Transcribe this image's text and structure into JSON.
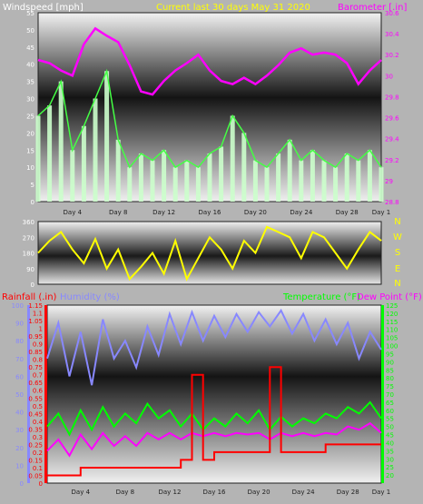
{
  "header": {
    "left_title": "Windspeed [mph]",
    "center_title": "Current last 30 days May 31 2020",
    "right_title": "Barometer [.in]"
  },
  "mid_header": {
    "rain_label": "Rainfall (.in)",
    "humidity_label": "Humidity (%)",
    "temp_label": "Temperature (°F)",
    "dew_label": "Dew Point (°F)"
  },
  "compass": [
    "N",
    "W",
    "S",
    "E",
    "N"
  ],
  "colors": {
    "wind_gust": "#ffffff",
    "wind_avg": "#44ff44",
    "wind_fill": "#ccffcc",
    "barometer": "#ff00ff",
    "direction": "#ffff00",
    "humidity": "#8888ff",
    "temperature": "#00ff00",
    "dewpoint": "#ff00ff",
    "rain": "#ff0000",
    "title_yellow": "#ffff00",
    "label_blue": "#8888ff",
    "label_red": "#ff0000",
    "label_green": "#00ff00",
    "label_magenta": "#ff00ff"
  },
  "chart_data": [
    {
      "type": "line",
      "id": "wind-barometer",
      "x_ticks": [
        "Day 4",
        "Day 8",
        "Day 12",
        "Day 16",
        "Day 20",
        "Day 24",
        "Day 28",
        "Day 1"
      ],
      "x_range": [
        1,
        31
      ],
      "left_axis": {
        "ticks": [
          "0",
          "5",
          "10",
          "15",
          "20",
          "25",
          "30",
          "35",
          "40",
          "45",
          "50",
          "55"
        ],
        "range": [
          0,
          55
        ]
      },
      "right_axis": {
        "ticks": [
          "28.8",
          "29",
          "29.2",
          "29.4",
          "29.6",
          "29.8",
          "30",
          "30.2",
          "30.4",
          "30.6"
        ],
        "range": [
          28.8,
          30.6
        ]
      },
      "series": [
        {
          "name": "Windspeed",
          "axis": "left",
          "x": [
            1,
            2,
            3,
            4,
            5,
            6,
            7,
            8,
            9,
            10,
            11,
            12,
            13,
            14,
            15,
            16,
            17,
            18,
            19,
            20,
            21,
            22,
            23,
            24,
            25,
            26,
            27,
            28,
            29,
            30,
            31
          ],
          "values": [
            25,
            28,
            35,
            15,
            22,
            30,
            38,
            18,
            10,
            14,
            12,
            15,
            10,
            12,
            10,
            14,
            16,
            25,
            20,
            12,
            10,
            14,
            18,
            12,
            15,
            12,
            10,
            14,
            12,
            15,
            10
          ]
        },
        {
          "name": "Barometer",
          "axis": "right",
          "x": [
            1,
            2,
            3,
            4,
            5,
            6,
            7,
            8,
            9,
            10,
            11,
            12,
            13,
            14,
            15,
            16,
            17,
            18,
            19,
            20,
            21,
            22,
            23,
            24,
            25,
            26,
            27,
            28,
            29,
            30,
            31
          ],
          "values": [
            30.15,
            30.12,
            30.05,
            30.0,
            30.3,
            30.45,
            30.38,
            30.32,
            30.1,
            29.85,
            29.82,
            29.95,
            30.05,
            30.12,
            30.2,
            30.05,
            29.95,
            29.92,
            29.98,
            29.92,
            30.0,
            30.1,
            30.22,
            30.26,
            30.2,
            30.22,
            30.2,
            30.12,
            29.92,
            30.05,
            30.15
          ]
        }
      ]
    },
    {
      "type": "line",
      "id": "wind-direction",
      "x_range": [
        1,
        31
      ],
      "left_axis": {
        "ticks": [
          "0",
          "90",
          "180",
          "270",
          "360"
        ],
        "range": [
          0,
          360
        ]
      },
      "series": [
        {
          "name": "Wind Direction",
          "x": [
            1,
            2,
            3,
            4,
            5,
            6,
            7,
            8,
            9,
            10,
            11,
            12,
            13,
            14,
            15,
            16,
            17,
            18,
            19,
            20,
            21,
            22,
            23,
            24,
            25,
            26,
            27,
            28,
            29,
            30,
            31
          ],
          "values": [
            180,
            250,
            300,
            200,
            120,
            260,
            90,
            200,
            30,
            100,
            180,
            60,
            250,
            30,
            150,
            270,
            200,
            90,
            250,
            180,
            330,
            300,
            270,
            150,
            300,
            270,
            180,
            90,
            200,
            300,
            250
          ]
        }
      ]
    },
    {
      "type": "line",
      "id": "rain-humidity-temp",
      "x_ticks": [
        "Day 4",
        "Day 8",
        "Day 12",
        "Day 16",
        "Day 20",
        "Day 24",
        "Day 28",
        "Day 1"
      ],
      "x_range": [
        1,
        31
      ],
      "humidity_axis": {
        "ticks": [
          "0",
          "10",
          "20",
          "30",
          "40",
          "50",
          "60",
          "70",
          "80",
          "90",
          "100"
        ],
        "range": [
          0,
          100
        ]
      },
      "rain_axis": {
        "ticks": [
          "0",
          "0.05",
          "0.1",
          "0.15",
          "0.2",
          "0.25",
          "0.3",
          "0.35",
          "0.4",
          "0.45",
          "0.5",
          "0.55",
          "0.6",
          "0.65",
          "0.7",
          "0.75",
          "0.8",
          "0.85",
          "0.9",
          "0.95",
          "1",
          "1.05",
          "1.1",
          "1.15"
        ],
        "range": [
          0,
          1.15
        ]
      },
      "temp_axis": {
        "ticks": [
          "20",
          "25",
          "30",
          "35",
          "40",
          "45",
          "50",
          "55",
          "60",
          "65",
          "70",
          "75",
          "80",
          "85",
          "90",
          "95",
          "100",
          "105",
          "110",
          "115",
          "120",
          "125"
        ],
        "range": [
          15,
          125
        ]
      },
      "series": [
        {
          "name": "Humidity",
          "axis": "humidity",
          "x": [
            1,
            2,
            3,
            4,
            5,
            6,
            7,
            8,
            9,
            10,
            11,
            12,
            13,
            14,
            15,
            16,
            17,
            18,
            19,
            20,
            21,
            22,
            23,
            24,
            25,
            26,
            27,
            28,
            29,
            30,
            31
          ],
          "values": [
            70,
            90,
            60,
            85,
            55,
            92,
            70,
            80,
            65,
            88,
            72,
            95,
            78,
            96,
            80,
            94,
            82,
            95,
            85,
            96,
            88,
            97,
            84,
            95,
            80,
            92,
            78,
            90,
            70,
            85,
            75
          ]
        },
        {
          "name": "Temperature",
          "axis": "temp",
          "x": [
            1,
            2,
            3,
            4,
            5,
            6,
            7,
            8,
            9,
            10,
            11,
            12,
            13,
            14,
            15,
            16,
            17,
            18,
            19,
            20,
            21,
            22,
            23,
            24,
            25,
            26,
            27,
            28,
            29,
            30,
            31
          ],
          "values": [
            50,
            58,
            45,
            60,
            48,
            62,
            50,
            58,
            52,
            64,
            55,
            60,
            50,
            58,
            48,
            55,
            50,
            58,
            52,
            60,
            48,
            56,
            50,
            55,
            52,
            58,
            55,
            62,
            58,
            65,
            55
          ]
        },
        {
          "name": "Dew Point",
          "axis": "temp",
          "x": [
            1,
            2,
            3,
            4,
            5,
            6,
            7,
            8,
            9,
            10,
            11,
            12,
            13,
            14,
            15,
            16,
            17,
            18,
            19,
            20,
            21,
            22,
            23,
            24,
            25,
            26,
            27,
            28,
            29,
            30,
            31
          ],
          "values": [
            35,
            42,
            32,
            45,
            36,
            46,
            38,
            44,
            38,
            46,
            42,
            46,
            42,
            46,
            44,
            46,
            44,
            46,
            45,
            46,
            42,
            46,
            44,
            46,
            44,
            46,
            45,
            50,
            48,
            52,
            46
          ]
        },
        {
          "name": "Rainfall",
          "axis": "rain",
          "x": [
            1,
            2,
            3,
            4,
            5,
            6,
            7,
            8,
            9,
            10,
            11,
            12,
            13,
            14,
            15,
            16,
            17,
            18,
            19,
            20,
            21,
            22,
            23,
            24,
            25,
            26,
            27,
            28,
            29,
            30,
            31
          ],
          "values": [
            0.05,
            0.05,
            0.05,
            0.1,
            0.1,
            0.1,
            0.1,
            0.1,
            0.1,
            0.1,
            0.1,
            0.1,
            0.15,
            0.7,
            0.15,
            0.2,
            0.2,
            0.2,
            0.2,
            0.2,
            0.75,
            0.2,
            0.2,
            0.2,
            0.2,
            0.25,
            0.25,
            0.25,
            0.25,
            0.25,
            0.25
          ]
        }
      ]
    }
  ]
}
